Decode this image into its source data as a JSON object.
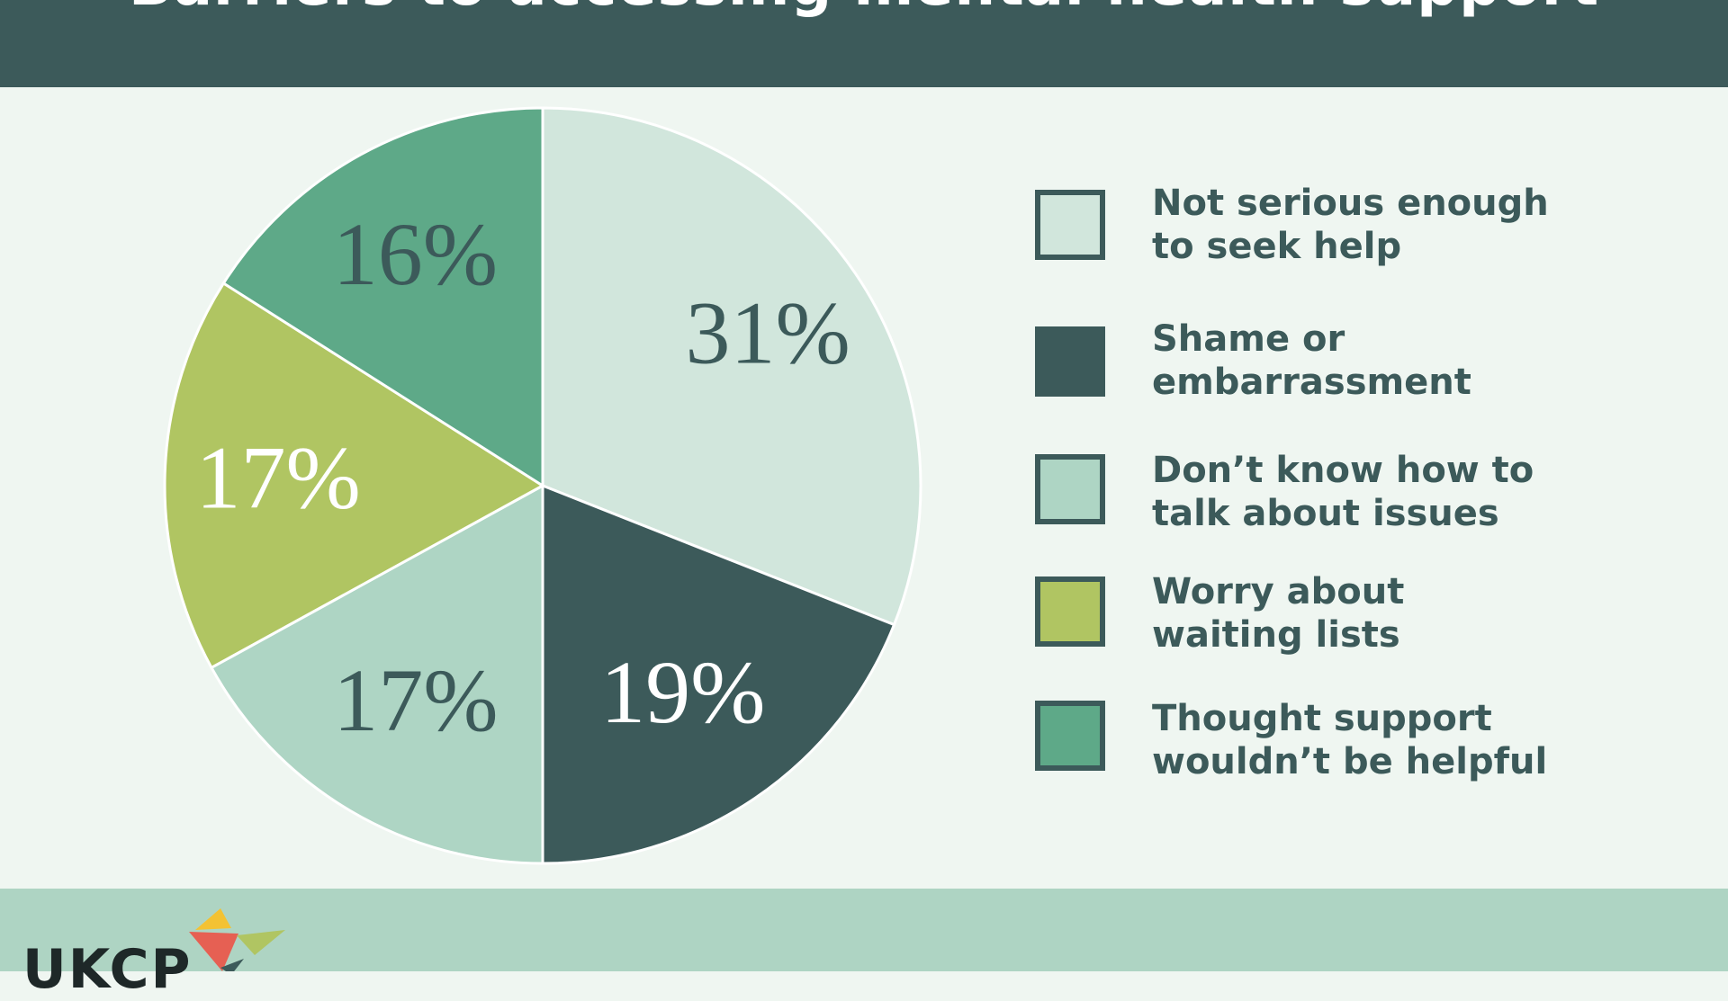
{
  "header": {
    "title": "Barriers to accessing mental health support"
  },
  "colors": {
    "dark": "#3c5a5a",
    "background": "#eff6f1",
    "footer": "#aed4c3"
  },
  "chart_data": {
    "type": "pie",
    "title": "Barriers to accessing mental health support",
    "slices": [
      {
        "label": "Not serious enough to seek help",
        "value": 31,
        "display": "31%",
        "color": "#d1e6dc",
        "label_color": "#3c5a5a"
      },
      {
        "label": "Shame or embarrassment",
        "value": 19,
        "display": "19%",
        "color": "#3c5a5a",
        "label_color": "#ffffff"
      },
      {
        "label": "Don’t know how to talk about issues",
        "value": 17,
        "display": "17%",
        "color": "#aed5c4",
        "label_color": "#3c5a5a"
      },
      {
        "label": "Worry about waiting lists",
        "value": 17,
        "display": "17%",
        "color": "#b0c562",
        "label_color": "#ffffff"
      },
      {
        "label": "Thought support wouldn’t be helpful",
        "value": 16,
        "display": "16%",
        "color": "#5ea988",
        "label_color": "#3c5a5a"
      }
    ],
    "legend_position": "right"
  },
  "legend": {
    "items": [
      {
        "label": "Not serious enough\nto seek help",
        "color": "#d1e6dc"
      },
      {
        "label": "Shame or\nembarrassment",
        "color": "#3c5a5a"
      },
      {
        "label": "Don’t know how to\ntalk about issues",
        "color": "#aed5c4"
      },
      {
        "label": "Worry about\nwaiting lists",
        "color": "#b0c562"
      },
      {
        "label": "Thought support\nwouldn’t be helpful",
        "color": "#5ea988"
      }
    ]
  },
  "footer": {
    "logo_text": "UKCP",
    "logo_colors": [
      "#f3c233",
      "#e66053",
      "#b0c562",
      "#3c5a5a"
    ]
  }
}
